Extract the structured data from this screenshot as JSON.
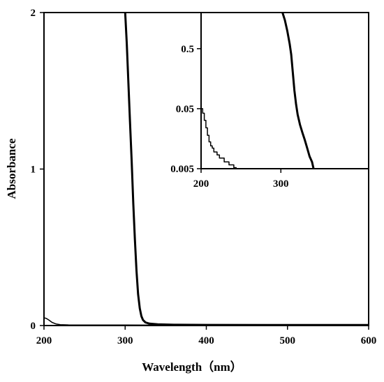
{
  "chart_data": [
    {
      "type": "line",
      "title": "",
      "xlabel": "Wavelength（nm）",
      "ylabel": "Absorbance",
      "xlim": [
        200,
        600
      ],
      "ylim": [
        0,
        2
      ],
      "x_ticks": [
        "200",
        "300",
        "400",
        "500",
        "600"
      ],
      "y_ticks": [
        "0",
        "1",
        "2"
      ],
      "grid": false,
      "legend": "none",
      "series": [
        {
          "color": "#000000",
          "style": "thick",
          "x": [
            300,
            302,
            304,
            306,
            308,
            310,
            312,
            314,
            316,
            318,
            320,
            322,
            325,
            330,
            340,
            360,
            400,
            500,
            600
          ],
          "y": [
            2.0,
            1.8,
            1.55,
            1.3,
            1.05,
            0.78,
            0.55,
            0.35,
            0.2,
            0.11,
            0.06,
            0.035,
            0.02,
            0.012,
            0.008,
            0.005,
            0.004,
            0.003,
            0.003
          ]
        },
        {
          "color": "#000000",
          "style": "thin",
          "x": [
            200,
            203,
            206,
            210,
            215,
            220,
            230,
            260,
            300,
            400,
            600
          ],
          "y": [
            0.05,
            0.045,
            0.035,
            0.02,
            0.01,
            0.006,
            0.004,
            0.003,
            0.003,
            0.002,
            0.002
          ]
        }
      ]
    },
    {
      "type": "line",
      "title": "",
      "xlabel": "",
      "ylabel": "",
      "xlim": [
        200,
        410
      ],
      "ylim": [
        0.005,
        2
      ],
      "y_scale": "log",
      "x_ticks": [
        "200",
        "300"
      ],
      "y_ticks": [
        "0.005",
        "0.05",
        "0.5"
      ],
      "grid": false,
      "legend": "none",
      "series": [
        {
          "color": "#000000",
          "style": "thick",
          "x": [
            302,
            305,
            308,
            311,
            313,
            315,
            317,
            319,
            321,
            324,
            327,
            330,
            333,
            336,
            339,
            341
          ],
          "y": [
            2.0,
            1.5,
            1.0,
            0.6,
            0.4,
            0.2,
            0.1,
            0.06,
            0.04,
            0.027,
            0.02,
            0.015,
            0.011,
            0.008,
            0.0065,
            0.005
          ]
        },
        {
          "color": "#000000",
          "style": "thin",
          "x": [
            200,
            202,
            204,
            206,
            208,
            210,
            212,
            214,
            216,
            218,
            220,
            223,
            226,
            229,
            232,
            235,
            238,
            241,
            244
          ],
          "y": [
            0.05,
            0.042,
            0.032,
            0.024,
            0.018,
            0.014,
            0.012,
            0.011,
            0.0095,
            0.0095,
            0.0085,
            0.0075,
            0.0075,
            0.0065,
            0.0065,
            0.0058,
            0.0058,
            0.0052,
            0.005
          ]
        }
      ]
    }
  ]
}
